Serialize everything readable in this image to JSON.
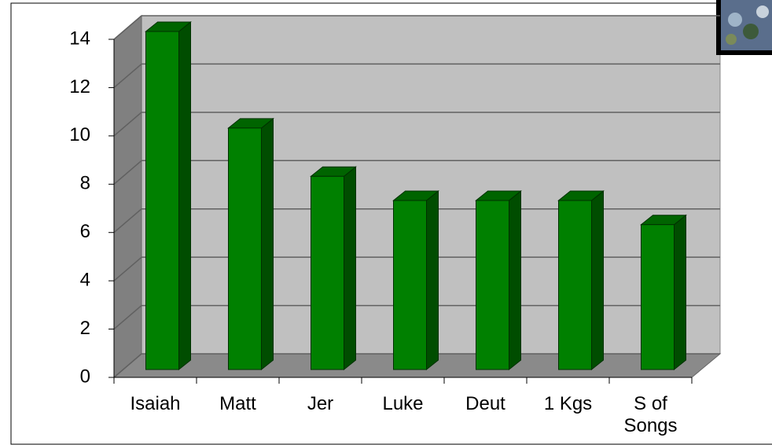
{
  "chart_data": {
    "type": "bar",
    "categories": [
      "Isaiah",
      "Matt",
      "Jer",
      "Luke",
      "Deut",
      "1 Kgs",
      "S of Songs"
    ],
    "values": [
      14,
      10,
      8,
      7,
      7,
      7,
      6
    ],
    "color": "#008000",
    "ylim": [
      0,
      14
    ],
    "yticks": [
      0,
      2,
      4,
      6,
      8,
      10,
      12,
      14
    ],
    "grid": true
  }
}
